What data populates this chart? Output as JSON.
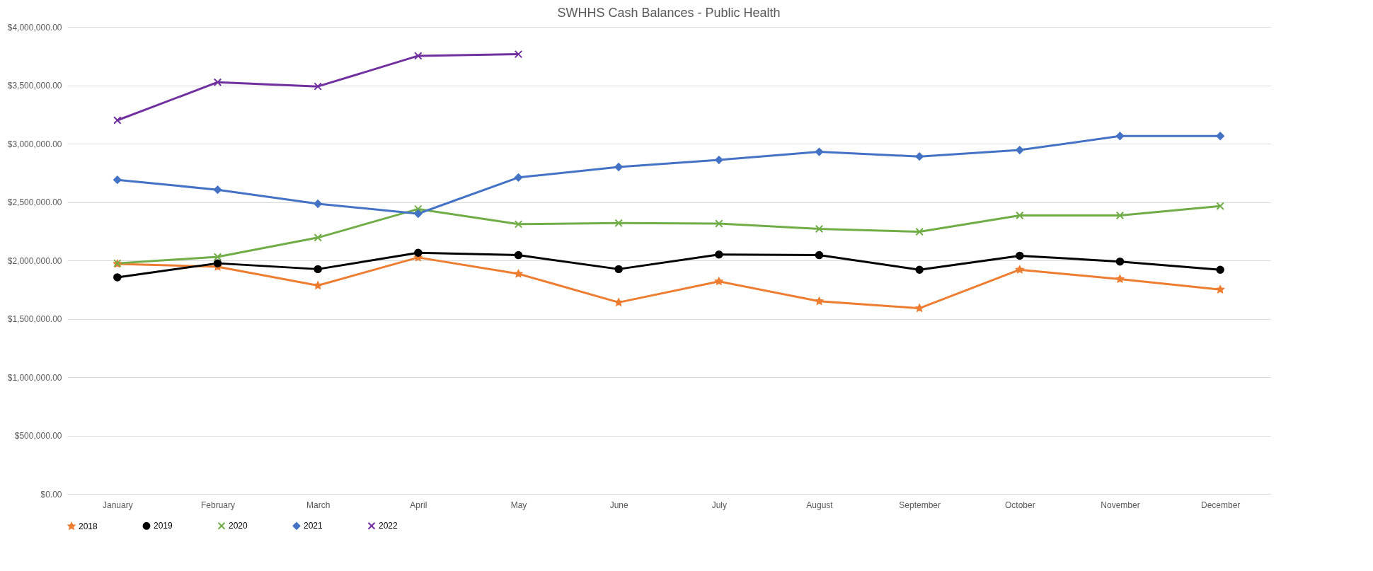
{
  "chart_data": {
    "type": "line",
    "title": "SWHHS Cash Balances - Public Health",
    "categories": [
      "January",
      "February",
      "March",
      "April",
      "May",
      "June",
      "July",
      "August",
      "September",
      "October",
      "November",
      "December"
    ],
    "series": [
      {
        "name": "2018",
        "color": "#ed7d31",
        "marker": "star",
        "values": [
          1970000,
          1945000,
          1785000,
          2025000,
          1885000,
          1640000,
          1820000,
          1650000,
          1590000,
          1920000,
          1840000,
          1750000
        ]
      },
      {
        "name": "2019",
        "color": "#000000",
        "marker": "circle",
        "values": [
          1855000,
          1975000,
          1925000,
          2065000,
          2045000,
          1925000,
          2050000,
          2045000,
          1920000,
          2040000,
          1990000,
          1920000
        ]
      },
      {
        "name": "2020",
        "color": "#70ad47",
        "marker": "cross",
        "values": [
          1975000,
          2030000,
          2195000,
          2440000,
          2310000,
          2320000,
          2315000,
          2270000,
          2245000,
          2385000,
          2385000,
          2465000
        ]
      },
      {
        "name": "2021",
        "color": "#4472c4",
        "marker": "diamond",
        "values": [
          2690000,
          2605000,
          2485000,
          2400000,
          2710000,
          2800000,
          2860000,
          2930000,
          2890000,
          2945000,
          3065000,
          3065000
        ]
      },
      {
        "name": "2022",
        "color": "#7030a0",
        "marker": "cross",
        "values": [
          3200000,
          3526000,
          3490000,
          3752000,
          3766000,
          null,
          null,
          null,
          null,
          null,
          null,
          null
        ]
      }
    ],
    "ylim": [
      0,
      4000000
    ],
    "yticks": [
      {
        "value": 0,
        "label": "$0.00"
      },
      {
        "value": 500000,
        "label": "$500,000.00"
      },
      {
        "value": 1000000,
        "label": "$1,000,000.00"
      },
      {
        "value": 1500000,
        "label": "$1,500,000.00"
      },
      {
        "value": 2000000,
        "label": "$2,000,000.00"
      },
      {
        "value": 2500000,
        "label": "$2,500,000.00"
      },
      {
        "value": 3000000,
        "label": "$3,000,000.00"
      },
      {
        "value": 3500000,
        "label": "$3,500,000.00"
      },
      {
        "value": 4000000,
        "label": "$4,000,000.00"
      }
    ],
    "grid": "y",
    "legend": "bottom"
  }
}
